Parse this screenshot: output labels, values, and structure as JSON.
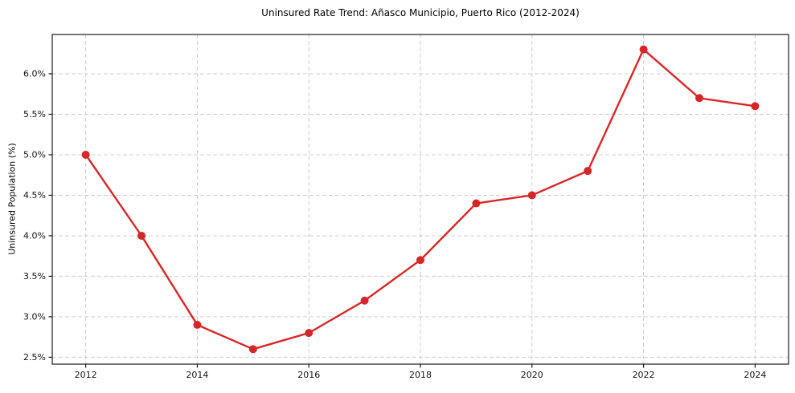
{
  "figure": {
    "title": "Uninsured Rate Trend: Añasco Municipio, Puerto Rico (2012-2024)"
  },
  "chart_data": {
    "type": "line",
    "title": "Uninsured Rate Trend: Añasco Municipio, Puerto Rico (2012-2024)",
    "xlabel": "",
    "ylabel": "Uninsured Population (%)",
    "x": [
      2012,
      2013,
      2014,
      2015,
      2016,
      2017,
      2018,
      2019,
      2020,
      2021,
      2022,
      2023,
      2024
    ],
    "values": [
      5.0,
      4.0,
      2.9,
      2.6,
      2.8,
      3.2,
      3.7,
      4.4,
      4.5,
      4.8,
      6.3,
      5.7,
      5.6
    ],
    "unit": "%",
    "xlim": [
      2011.4,
      2024.6
    ],
    "ylim": [
      2.415,
      6.485
    ],
    "x_ticks": {
      "values": [
        2012,
        2014,
        2016,
        2018,
        2020,
        2022,
        2024
      ],
      "labels": [
        "2012",
        "2014",
        "2016",
        "2018",
        "2020",
        "2022",
        "2024"
      ]
    },
    "y_ticks": {
      "values": [
        2.5,
        3.0,
        3.5,
        4.0,
        4.5,
        5.0,
        5.5,
        6.0
      ],
      "labels": [
        "2.5%",
        "3.0%",
        "3.5%",
        "4.0%",
        "4.5%",
        "5.0%",
        "5.5%",
        "6.0%"
      ]
    },
    "grid": true,
    "legend_position": "none",
    "style": {
      "line_color": "#d62728",
      "marker": "circle",
      "marker_radius": 5,
      "line_width": 2.4,
      "grid_color": "#cccccc",
      "grid_style": "dashed",
      "spine_color": "#1a1a1a",
      "background": "#ffffff",
      "text_color": "#141414"
    }
  }
}
